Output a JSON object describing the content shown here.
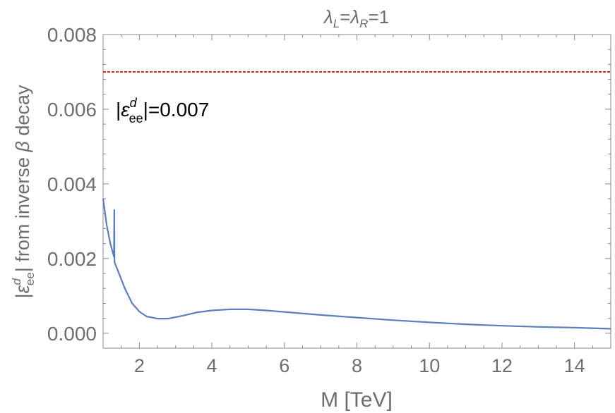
{
  "chart_data": {
    "type": "line",
    "title": {
      "lambda": "λ",
      "sub_left": "L",
      "sub_right": "R",
      "equals": "=",
      "value": "1"
    },
    "xlabel": "M [TeV]",
    "ylabel": {
      "bar": "|",
      "epsilon": "ε",
      "sub": "ee",
      "sup": "d",
      "rest": "| from inverse ",
      "beta": "β",
      "tail": " decay"
    },
    "xlim": [
      1,
      15
    ],
    "ylim": [
      -0.0004,
      0.008
    ],
    "xticks": [
      {
        "value": 2,
        "label": "2"
      },
      {
        "value": 4,
        "label": "4"
      },
      {
        "value": 6,
        "label": "6"
      },
      {
        "value": 8,
        "label": "8"
      },
      {
        "value": 10,
        "label": "10"
      },
      {
        "value": 12,
        "label": "12"
      },
      {
        "value": 14,
        "label": "14"
      }
    ],
    "yticks": [
      {
        "value": 0.0,
        "label": "0.000"
      },
      {
        "value": 0.002,
        "label": "0.002"
      },
      {
        "value": 0.004,
        "label": "0.004"
      },
      {
        "value": 0.006,
        "label": "0.006"
      },
      {
        "value": 0.008,
        "label": "0.008"
      }
    ],
    "reference_line": {
      "y": 0.007,
      "color": "#e0201c",
      "style": "dashed"
    },
    "annotation": {
      "bar": "|",
      "epsilon": "ε",
      "sub": "ee",
      "sup": "d",
      "rest": "|=0.007",
      "x": 1.35,
      "y": 0.006
    },
    "series": [
      {
        "color": "#5b7fbb",
        "points": [
          [
            1.0,
            0.0036
          ],
          [
            1.1,
            0.0029
          ],
          [
            1.2,
            0.0024
          ],
          [
            1.3,
            0.00205
          ],
          [
            1.31,
            0.0033
          ],
          [
            1.315,
            0.0019
          ],
          [
            1.4,
            0.0017
          ],
          [
            1.6,
            0.0012
          ],
          [
            1.8,
            0.0008
          ],
          [
            2.0,
            0.00058
          ],
          [
            2.2,
            0.00045
          ],
          [
            2.5,
            0.00039
          ],
          [
            2.8,
            0.00039
          ],
          [
            3.2,
            0.00047
          ],
          [
            3.6,
            0.00056
          ],
          [
            4.0,
            0.00061
          ],
          [
            4.5,
            0.00064
          ],
          [
            5.0,
            0.00064
          ],
          [
            5.5,
            0.00061
          ],
          [
            6.0,
            0.00057
          ],
          [
            7.0,
            0.00049
          ],
          [
            8.0,
            0.00042
          ],
          [
            9.0,
            0.00035
          ],
          [
            10.0,
            0.00029
          ],
          [
            11.0,
            0.00024
          ],
          [
            12.0,
            0.0002
          ],
          [
            13.0,
            0.00017
          ],
          [
            14.0,
            0.00015
          ],
          [
            15.0,
            0.00012
          ]
        ]
      }
    ]
  }
}
